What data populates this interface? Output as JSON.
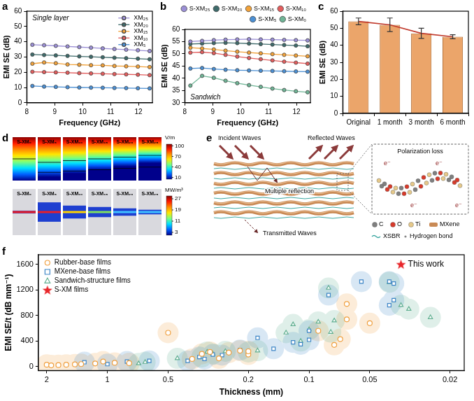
{
  "chart_data": [
    {
      "panel": "a",
      "type": "line",
      "annotation": "Single layer",
      "x_label": "Frequency (GHz)",
      "y_label": "EMI SE (dB)",
      "x": [
        8.2,
        8.62,
        9.04,
        9.46,
        9.88,
        10.3,
        10.72,
        11.14,
        11.56,
        11.98,
        12.4
      ],
      "xlim": [
        8,
        12.5
      ],
      "xticks": [
        8,
        9,
        10,
        11,
        12
      ],
      "ylim": [
        0,
        60
      ],
      "yticks": [
        0,
        10,
        20,
        30,
        40,
        50,
        60
      ],
      "grid": false,
      "legend": "upper right",
      "marker": "circle",
      "series": [
        {
          "name": "XM₂₅",
          "color": "#9b8fd6",
          "values": [
            38,
            37.7,
            37.3,
            36.9,
            36.5,
            36.1,
            35.6,
            35.2,
            34.8,
            34.4,
            33.9
          ]
        },
        {
          "name": "XM₂₀",
          "color": "#3e6b6b",
          "values": [
            31.6,
            31.3,
            31,
            30.7,
            30.4,
            30.1,
            29.8,
            29.5,
            29.2,
            28.9,
            28.5
          ]
        },
        {
          "name": "XM₁₅",
          "color": "#f2a23a",
          "values": [
            25.6,
            26.4,
            25.9,
            25.1,
            24.9,
            24.6,
            24.5,
            24.1,
            23.9,
            23.7,
            23.4
          ]
        },
        {
          "name": "XM₁₀",
          "color": "#e35d5d",
          "values": [
            20.3,
            20.1,
            19.9,
            19.7,
            19.4,
            19.2,
            19,
            18.8,
            18.6,
            18.4,
            18.1
          ]
        },
        {
          "name": "XM₅",
          "color": "#4a8fd4",
          "values": [
            11,
            10.6,
            10.4,
            10.2,
            10,
            9.9,
            9.8,
            9.7,
            9.6,
            9.5,
            9.4
          ]
        }
      ]
    },
    {
      "panel": "b",
      "type": "line",
      "annotation": "Sandwich",
      "x_label": "Frequency (GHz)",
      "y_label": "EMI SE (dB)",
      "x": [
        8.2,
        8.62,
        9.04,
        9.46,
        9.88,
        10.3,
        10.72,
        11.14,
        11.56,
        11.98,
        12.4
      ],
      "xlim": [
        8,
        12.5
      ],
      "xticks": [
        8,
        9,
        10,
        11,
        12
      ],
      "ylim": [
        30,
        60
      ],
      "yticks": [
        30,
        35,
        40,
        45,
        50,
        55,
        60
      ],
      "grid": false,
      "legend": "top",
      "marker": "circle",
      "series": [
        {
          "name": "S-XM₂₅",
          "color": "#9b8fd6",
          "values": [
            55,
            55.3,
            55.6,
            55.8,
            55.9,
            56,
            55.9,
            55.8,
            55.7,
            55.6,
            55.5
          ]
        },
        {
          "name": "S-XM₂₀",
          "color": "#3e6b6b",
          "values": [
            54,
            54.2,
            54.4,
            54.5,
            54.4,
            54.2,
            54,
            53.8,
            53.6,
            53.4,
            53.1
          ]
        },
        {
          "name": "S-XM₁₅",
          "color": "#f2a23a",
          "values": [
            52.5,
            52.2,
            51.8,
            51.3,
            50.9,
            50.5,
            50.2,
            49.9,
            49.6,
            49.3,
            49
          ]
        },
        {
          "name": "S-XM₁₀",
          "color": "#e35d5d",
          "values": [
            50.5,
            50.7,
            50.3,
            49.6,
            48.9,
            48.3,
            47.8,
            47.3,
            46.8,
            46.4,
            46
          ]
        },
        {
          "name": "S-XM₅",
          "color": "#4a8fd4",
          "values": [
            44,
            44.2,
            43.8,
            43.5,
            43.3,
            43.2,
            43.1,
            43,
            42.9,
            42.8,
            42.7
          ]
        },
        {
          "name": "S-XM₀",
          "color": "#6fb596",
          "values": [
            37,
            41,
            40.2,
            39,
            38,
            37.2,
            36.5,
            35.8,
            35.2,
            34.7,
            34.3
          ]
        }
      ]
    },
    {
      "panel": "c",
      "type": "bar",
      "y_label": "EMI SE (dB)",
      "categories": [
        "Original",
        "1 month",
        "3 month",
        "6 month"
      ],
      "ylim": [
        0,
        60
      ],
      "yticks": [
        0,
        10,
        20,
        30,
        40,
        50,
        60
      ],
      "grid": false,
      "series": [
        {
          "type": "bar",
          "color": "#eba56a",
          "values": [
            54,
            52,
            47,
            45
          ],
          "errors": [
            2,
            4,
            3,
            1.2
          ]
        },
        {
          "type": "line",
          "color": "#c0392b",
          "values": [
            54,
            52,
            47,
            45
          ]
        }
      ]
    },
    {
      "panel": "f",
      "type": "scatter",
      "x_label": "Thickness (mm)",
      "y_label": "EMI SE/t (dB mm⁻¹)",
      "log": "x",
      "xlim": [
        2.2,
        0.017
      ],
      "xticks": [
        2,
        1,
        0.5,
        0.2,
        0.1,
        0.05,
        0.02
      ],
      "ylim": [
        -60,
        1750
      ],
      "yticks": [
        0,
        400,
        800,
        1200,
        1600
      ],
      "grid": false,
      "legend": "upper left",
      "series": [
        {
          "name": "Rubber-base films",
          "color": "#f0a040",
          "marker": "circle",
          "x": [
            2.0,
            1.9,
            1.75,
            1.6,
            1.45,
            1.35,
            1.15,
            1.05,
            0.92,
            0.78,
            0.5,
            0.38,
            0.34,
            0.31,
            0.28,
            0.25,
            0.22,
            0.2,
            0.2,
            0.09,
            0.075,
            0.07,
            0.065,
            0.065,
            0.05
          ],
          "values": [
            30,
            20,
            25,
            30,
            35,
            40,
            50,
            80,
            60,
            55,
            530,
            120,
            200,
            230,
            130,
            220,
            250,
            190,
            240,
            560,
            340,
            430,
            740,
            980,
            680
          ]
        },
        {
          "name": "MXene-base films",
          "color": "#3d85c6",
          "marker": "square",
          "x": [
            1.3,
            1.0,
            0.8,
            0.62,
            0.4,
            0.35,
            0.33,
            0.3,
            0.27,
            0.22,
            0.18,
            0.15,
            0.12,
            0.11,
            0.1,
            0.1,
            0.08,
            0.055,
            0.04,
            0.038,
            0.038,
            0.04
          ],
          "values": [
            70,
            40,
            80,
            90,
            90,
            150,
            120,
            190,
            180,
            260,
            450,
            280,
            380,
            350,
            420,
            560,
            1120,
            1330,
            1330,
            1300,
            1040,
            960
          ]
        },
        {
          "name": "Sandwich-structure films",
          "color": "#5fae8f",
          "marker": "triangle",
          "x": [
            0.7,
            0.65,
            0.45,
            0.34,
            0.32,
            0.3,
            0.26,
            0.2,
            0.18,
            0.13,
            0.12,
            0.11,
            0.1,
            0.09,
            0.08,
            0.078,
            0.075,
            0.04,
            0.035,
            0.032,
            0.025
          ],
          "values": [
            50,
            70,
            130,
            150,
            230,
            200,
            240,
            230,
            250,
            530,
            660,
            400,
            580,
            700,
            1230,
            540,
            720,
            1320,
            960,
            900,
            770
          ]
        },
        {
          "name": "S-XM films",
          "color": "#e8262a",
          "marker": "star",
          "x": [
            0.035
          ],
          "values": [
            1600
          ]
        }
      ],
      "annotations": [
        {
          "text": "This work",
          "x": 0.035,
          "y": 1600
        }
      ]
    }
  ],
  "field_maps": {
    "panel": "d",
    "samples": [
      "S-XM₀",
      "S-XM₅",
      "S-XM₁₀",
      "S-XM₁₅",
      "S-XM₂₀",
      "S-XM₂₅"
    ],
    "electric_field": {
      "unit": "V/m",
      "range": [
        5,
        105
      ],
      "ticks": [
        10,
        40,
        70,
        100
      ]
    },
    "power_loss": {
      "unit": "MW/m³",
      "range": [
        1,
        29
      ],
      "ticks": [
        3,
        11,
        19,
        27
      ]
    }
  },
  "mechanism": {
    "panel": "e",
    "waves": {
      "incident": "Incident Waves",
      "reflected": "Reflected Waves",
      "inside": "Multiple reflection",
      "transmitted": "Transmitted Waves"
    },
    "inset": {
      "title": "Polarization loss",
      "charge": "e⁻"
    },
    "key": [
      "C",
      "O",
      "Ti",
      "XSBR",
      "Hydrogen bond",
      "MXene"
    ]
  }
}
